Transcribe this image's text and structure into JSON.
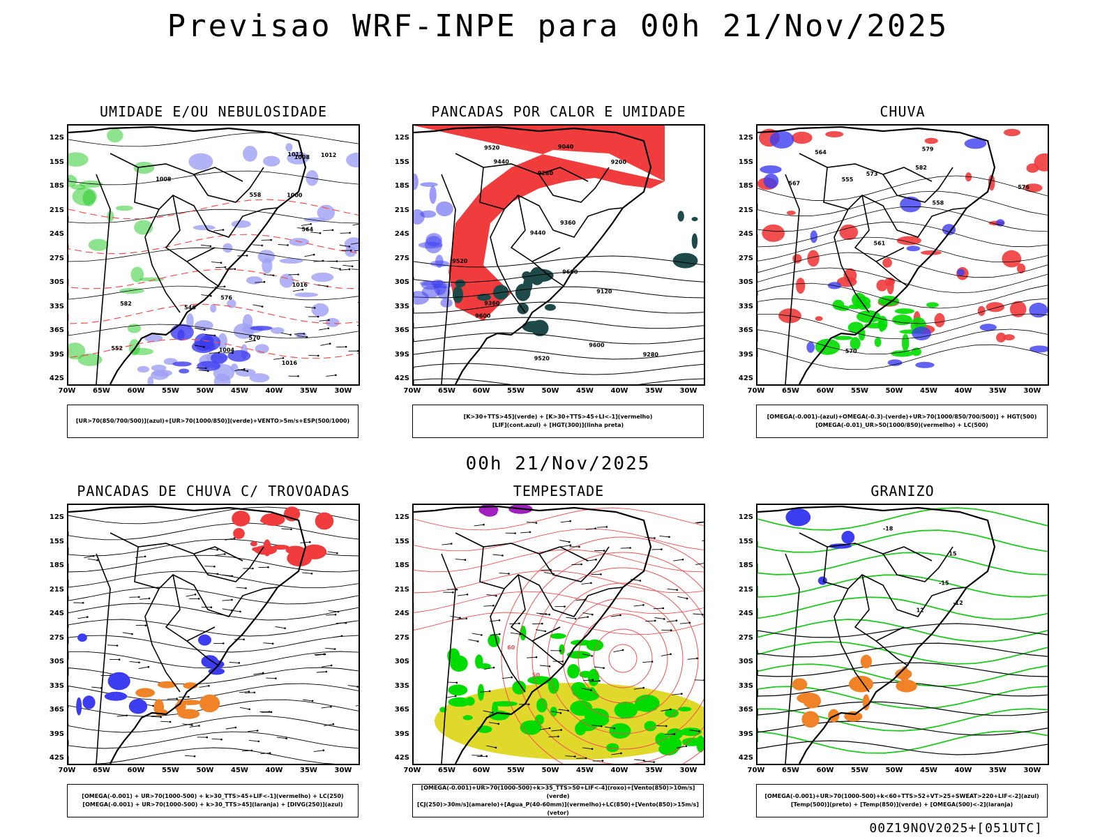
{
  "main_title": "Previsao WRF-INPE  para 00h 21/Nov/2025",
  "mid_title": "00h 21/Nov/2025",
  "footer_stamp": "00Z19NOV2025+[051UTC]",
  "axes": {
    "lat_labels": [
      "12S",
      "15S",
      "18S",
      "21S",
      "24S",
      "27S",
      "30S",
      "33S",
      "36S",
      "39S",
      "42S"
    ],
    "lon_labels": [
      "70W",
      "65W",
      "60W",
      "55W",
      "50W",
      "45W",
      "40W",
      "35W",
      "30W"
    ]
  },
  "colors": {
    "red_fill": "#f03c3c",
    "blue_fill": "#3c3cf0",
    "lightblue_fill": "#9f9ff5",
    "green_fill": "#00dc00",
    "green_line": "#1ec81e",
    "yellow_fill": "#e0d82a",
    "teal_fill": "#1f4a4a",
    "orange_fill": "#f08228",
    "purple_fill": "#a020c0",
    "red_line": "#f05050"
  },
  "panels": [
    {
      "title": "UMIDADE E/OU NEBULOSIDADE",
      "legend": [
        "[UR>70(850/700/500)](azul)+[UR>70(1000/850)](verde)+VENTO>5m/s+ESP(500/1000)"
      ],
      "contour_labels": [
        "1008",
        "1008",
        "1012",
        "1016",
        "1000",
        "1004",
        "1012",
        "1016",
        "570",
        "582",
        "576",
        "558",
        "552",
        "546",
        "564"
      ]
    },
    {
      "title": "PANCADAS POR CALOR E UMIDADE",
      "legend": [
        "[K>30+TTS>45](verde) + [K>30+TTS>45+LI<-1](vermelho)",
        "[LIF](cont.azul) + [HGT(300)](linha preta)"
      ],
      "contour_labels": [
        "9600",
        "9600",
        "9600",
        "9520",
        "9440",
        "9520",
        "9520",
        "9440",
        "9360",
        "9360",
        "9280",
        "9280",
        "9200",
        "9120",
        "9040"
      ]
    },
    {
      "title": "CHUVA",
      "legend": [
        "[OMEGA(-0.001)-(azul)+OMEGA(-0.3)-(verde)+UR>70(1000/850/700/500)] + HGT(500)",
        "[OMEGA(-0.01)_UR>50(1000/850)(vermelho) + LC(500)"
      ],
      "contour_labels": [
        "582",
        "579",
        "576",
        "573",
        "570",
        "567",
        "564",
        "561",
        "558",
        "555"
      ]
    },
    {
      "title": "PANCADAS DE CHUVA C/ TROVOADAS",
      "legend": [
        "[OMEGA(-0.001) + UR>70(1000-500) + k>30_TTS>45+LIF<-1](vermelho) + LC(250)",
        "[OMEGA(-0.001) + UR>70(1000-500) + k>30_TTS>45](laranja) + [DIVG(250)](azul)"
      ],
      "contour_labels": []
    },
    {
      "title": "TEMPESTADE",
      "legend": [
        "[OMEGA(-0.001)+UR>70(1000-500)+k>35_TTS>50+LIF<-4](roxo)+[Vento(850)>10m/s](verde)",
        "[CJ(250)>30m/s](amarelo)+[Agua_P(40-60mm)](vermelho)+LC(850)+[Vento(850)>15m/s](vetor)"
      ],
      "contour_labels": [
        "50",
        "60"
      ]
    },
    {
      "title": "GRANIZO",
      "legend": [
        "[OMEGA(-0.001)+UR>70(1000-500)+k<60+TTS>52+VT>25+SWEAT>220+LIF<-2](azul)",
        "[Temp(500)](preto) + [Temp(850)](verde) + [OMEGA(500)<-2](laranja)"
      ],
      "contour_labels": [
        "-12",
        "-15",
        "-18",
        "15",
        "12"
      ]
    }
  ]
}
